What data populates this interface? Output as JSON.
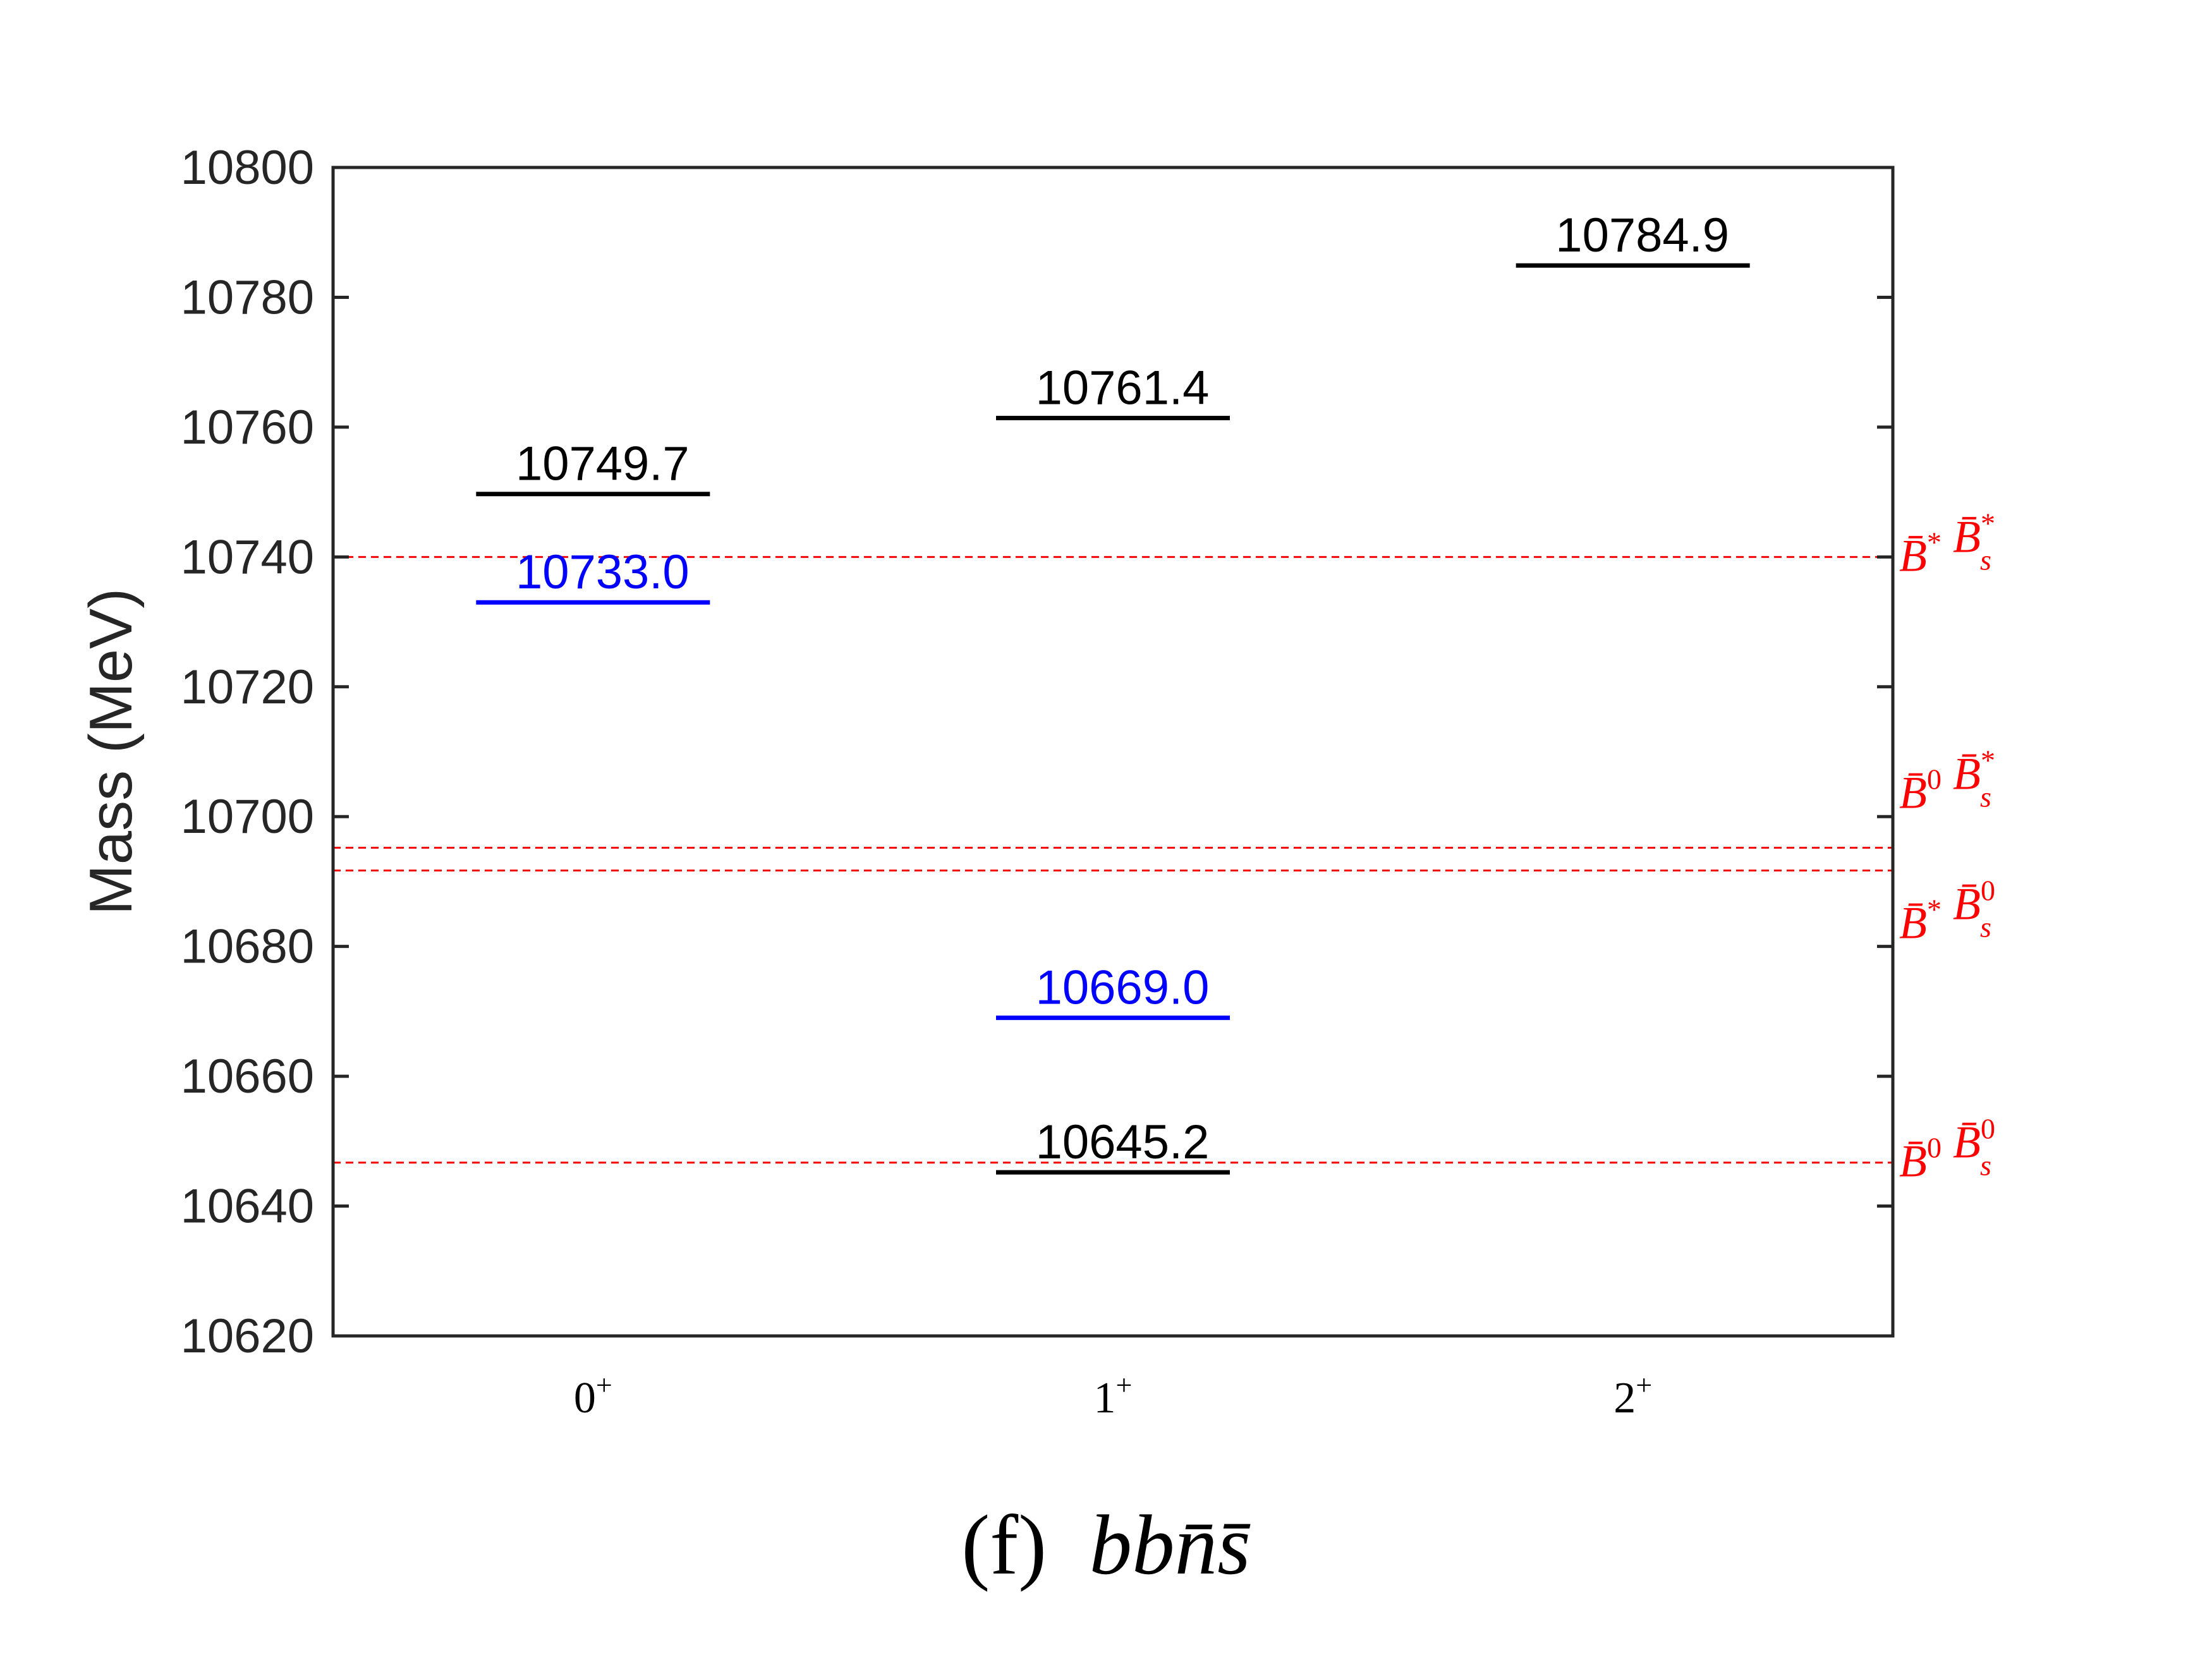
{
  "chart_data": {
    "type": "levels",
    "title": "",
    "caption": {
      "prefix": "(f)",
      "flavor": [
        {
          "base": "b",
          "bar": false
        },
        {
          "base": "b",
          "bar": false
        },
        {
          "base": "n",
          "bar": true
        },
        {
          "base": "s",
          "bar": true
        }
      ]
    },
    "ylabel": "Mass (MeV)",
    "xlabel": "",
    "ylim": [
      10620,
      10800
    ],
    "yticks": [
      10620,
      10640,
      10660,
      10680,
      10700,
      10720,
      10740,
      10760,
      10780,
      10800
    ],
    "categories": [
      {
        "label": "0",
        "sup": "+"
      },
      {
        "label": "1",
        "sup": "+"
      },
      {
        "label": "2",
        "sup": "+"
      }
    ],
    "levels": [
      {
        "category": 0,
        "value": 10749.7,
        "label": "10749.7",
        "color": "#000000"
      },
      {
        "category": 0,
        "value": 10733.0,
        "label": "10733.0",
        "color": "#0000ff"
      },
      {
        "category": 1,
        "value": 10761.4,
        "label": "10761.4",
        "color": "#000000"
      },
      {
        "category": 1,
        "value": 10669.0,
        "label": "10669.0",
        "color": "#0000ff"
      },
      {
        "category": 1,
        "value": 10645.2,
        "label": "10645.2",
        "color": "#000000"
      },
      {
        "category": 2,
        "value": 10784.9,
        "label": "10784.9",
        "color": "#000000"
      }
    ],
    "thresholds": [
      {
        "value": 10740.0,
        "p1": {
          "sup": "*",
          "sub": ""
        },
        "p2": {
          "sup": "*",
          "sub": "s"
        }
      },
      {
        "value": 10695.2,
        "p1": {
          "sup": "0",
          "sub": ""
        },
        "p2": {
          "sup": "*",
          "sub": "s"
        }
      },
      {
        "value": 10691.7,
        "p1": {
          "sup": "*",
          "sub": ""
        },
        "p2": {
          "sup": "0",
          "sub": "s"
        }
      },
      {
        "value": 10646.7,
        "p1": {
          "sup": "0",
          "sub": ""
        },
        "p2": {
          "sup": "0",
          "sub": "s"
        }
      }
    ],
    "threshold_particle": "B",
    "threshold_color": "#ff0000",
    "grid": false,
    "legend": "none"
  }
}
